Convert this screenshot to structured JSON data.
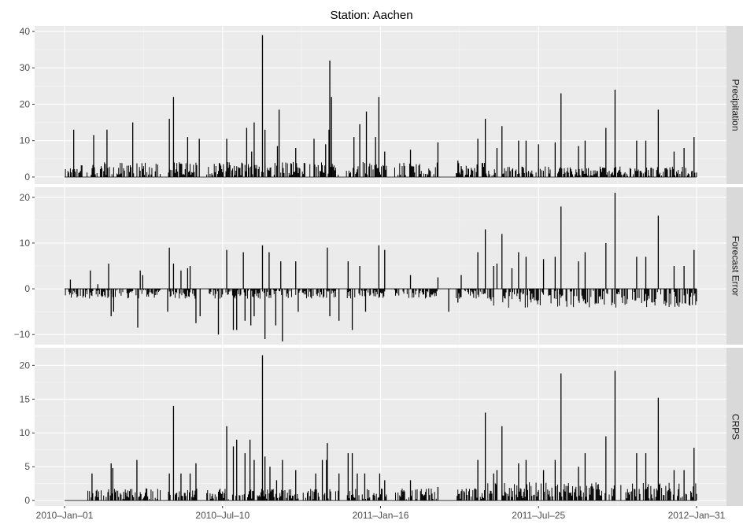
{
  "chart_data": {
    "type": "bar",
    "title": "Station:  Aachen",
    "x_ticks": [
      {
        "value": 0,
        "label": "2010–Jan–01"
      },
      {
        "value": 190,
        "label": "2010–Jul–10"
      },
      {
        "value": 380,
        "label": "2011–Jan–16"
      },
      {
        "value": 570,
        "label": "2011–Jul–25"
      },
      {
        "value": 760,
        "label": "2012–Jan–31"
      }
    ],
    "xlim": [
      -36,
      796
    ],
    "grid": true,
    "panels": [
      {
        "name": "Precipitation",
        "ylim": [
          -1.95,
          41.5
        ],
        "y_ticks": [
          0,
          10,
          20,
          30,
          40
        ],
        "y_tick_labels": [
          "0",
          "10",
          "20",
          "30",
          "40"
        ],
        "spikes": [
          [
            11,
            13
          ],
          [
            35,
            11.5
          ],
          [
            51,
            13
          ],
          [
            82,
            15
          ],
          [
            126,
            16
          ],
          [
            131,
            22
          ],
          [
            148,
            11
          ],
          [
            162,
            10.5
          ],
          [
            195,
            10.5
          ],
          [
            219,
            13.5
          ],
          [
            225,
            7
          ],
          [
            228,
            15
          ],
          [
            238,
            39
          ],
          [
            241,
            13
          ],
          [
            256,
            8.5
          ],
          [
            258,
            18.5
          ],
          [
            278,
            8
          ],
          [
            300,
            10.5
          ],
          [
            314,
            9
          ],
          [
            318,
            13
          ],
          [
            319,
            32
          ],
          [
            321,
            22
          ],
          [
            348,
            11
          ],
          [
            355,
            14.5
          ],
          [
            363,
            18
          ],
          [
            374,
            11
          ],
          [
            378,
            22
          ],
          [
            385,
            7
          ],
          [
            416,
            7.5
          ],
          [
            449,
            9.5
          ],
          [
            473,
            4.5
          ],
          [
            477,
            3
          ],
          [
            497,
            10.5
          ],
          [
            506,
            16
          ],
          [
            520,
            8
          ],
          [
            526,
            14
          ],
          [
            546,
            10
          ],
          [
            555,
            10
          ],
          [
            570,
            9
          ],
          [
            590,
            9.5
          ],
          [
            597,
            23
          ],
          [
            618,
            8.5
          ],
          [
            626,
            10
          ],
          [
            651,
            13.5
          ],
          [
            662,
            24
          ],
          [
            688,
            10
          ],
          [
            699,
            10
          ],
          [
            714,
            18.5
          ],
          [
            733,
            7
          ],
          [
            745,
            8
          ],
          [
            757,
            11
          ]
        ],
        "base_value": 2.3,
        "base_value_late": 1.6,
        "dry_periods": [
          [
            2,
            2.4
          ],
          [
            116,
            124
          ],
          [
            160,
            170
          ],
          [
            330,
            338
          ],
          [
            388,
            396
          ],
          [
            450,
            470
          ],
          [
            520,
            525
          ]
        ]
      },
      {
        "name": "Forecast Error",
        "ylim": [
          -12.2,
          22.2
        ],
        "y_ticks": [
          -10,
          0,
          10,
          20
        ],
        "y_tick_labels": [
          "−10",
          "0",
          "10",
          "20"
        ],
        "spikes": [
          [
            7,
            2
          ],
          [
            31,
            4
          ],
          [
            40,
            1
          ],
          [
            53,
            5.5
          ],
          [
            56,
            -6
          ],
          [
            59,
            -5
          ],
          [
            88,
            -8.5
          ],
          [
            91,
            4
          ],
          [
            94,
            3
          ],
          [
            124,
            -5
          ],
          [
            126,
            9
          ],
          [
            131,
            5.5
          ],
          [
            140,
            4
          ],
          [
            148,
            4.5
          ],
          [
            151,
            5
          ],
          [
            158,
            -7.5
          ],
          [
            163,
            -6
          ],
          [
            185,
            -10
          ],
          [
            195,
            8.5
          ],
          [
            203,
            -9
          ],
          [
            207,
            -9
          ],
          [
            215,
            8
          ],
          [
            217,
            -7
          ],
          [
            224,
            -8
          ],
          [
            228,
            -6
          ],
          [
            238,
            9.5
          ],
          [
            241,
            -11
          ],
          [
            246,
            8
          ],
          [
            254,
            -8
          ],
          [
            262,
            -11.5
          ],
          [
            260,
            6
          ],
          [
            278,
            6
          ],
          [
            281,
            -5
          ],
          [
            316,
            9
          ],
          [
            319,
            -6
          ],
          [
            330,
            -7
          ],
          [
            341,
            6
          ],
          [
            346,
            -9
          ],
          [
            355,
            5
          ],
          [
            362,
            -5
          ],
          [
            378,
            9.5
          ],
          [
            385,
            8.5
          ],
          [
            416,
            3
          ],
          [
            449,
            2.5
          ],
          [
            462,
            -5
          ],
          [
            473,
            -3
          ],
          [
            477,
            3
          ],
          [
            497,
            8
          ],
          [
            506,
            13
          ],
          [
            516,
            5
          ],
          [
            520,
            5.5
          ],
          [
            526,
            12
          ],
          [
            538,
            4.5
          ],
          [
            546,
            8
          ],
          [
            555,
            7
          ],
          [
            576,
            6.5
          ],
          [
            590,
            7
          ],
          [
            597,
            18
          ],
          [
            618,
            6
          ],
          [
            626,
            8
          ],
          [
            651,
            10
          ],
          [
            662,
            21
          ],
          [
            688,
            7
          ],
          [
            699,
            7
          ],
          [
            714,
            16
          ],
          [
            733,
            5
          ],
          [
            745,
            5
          ],
          [
            757,
            8.5
          ]
        ],
        "base_value": -1.2,
        "base_value_late": -2.3,
        "dry_periods": [
          [
            2,
            2.4
          ],
          [
            116,
            124
          ],
          [
            160,
            170
          ],
          [
            330,
            338
          ],
          [
            388,
            396
          ],
          [
            450,
            470
          ],
          [
            520,
            525
          ]
        ]
      },
      {
        "name": "CRPS",
        "ylim": [
          -0.8,
          22.6
        ],
        "y_ticks": [
          0,
          5,
          10,
          15,
          20
        ],
        "y_tick_labels": [
          "0",
          "5",
          "10",
          "15",
          "20"
        ],
        "spikes": [
          [
            33,
            4
          ],
          [
            56,
            5.5
          ],
          [
            58,
            4.8
          ],
          [
            87,
            6
          ],
          [
            126,
            4
          ],
          [
            131,
            14
          ],
          [
            140,
            4
          ],
          [
            151,
            4
          ],
          [
            158,
            5.5
          ],
          [
            195,
            11
          ],
          [
            203,
            8
          ],
          [
            207,
            9
          ],
          [
            217,
            7
          ],
          [
            223,
            9
          ],
          [
            228,
            6
          ],
          [
            238,
            21.5
          ],
          [
            241,
            6.5
          ],
          [
            247,
            5
          ],
          [
            255,
            3
          ],
          [
            262,
            6
          ],
          [
            278,
            4.5
          ],
          [
            302,
            4
          ],
          [
            310,
            6
          ],
          [
            315,
            6
          ],
          [
            316,
            8.5
          ],
          [
            330,
            4
          ],
          [
            341,
            7
          ],
          [
            346,
            7
          ],
          [
            352,
            4
          ],
          [
            361,
            4
          ],
          [
            379,
            4
          ],
          [
            385,
            3
          ],
          [
            416,
            3
          ],
          [
            449,
            2
          ],
          [
            497,
            6
          ],
          [
            506,
            13
          ],
          [
            516,
            4
          ],
          [
            520,
            4.5
          ],
          [
            526,
            11
          ],
          [
            546,
            5.5
          ],
          [
            555,
            6
          ],
          [
            576,
            4.5
          ],
          [
            590,
            6
          ],
          [
            597,
            18.8
          ],
          [
            618,
            5
          ],
          [
            626,
            7
          ],
          [
            651,
            9.5
          ],
          [
            662,
            19.2
          ],
          [
            688,
            7
          ],
          [
            699,
            7
          ],
          [
            714,
            15.2
          ],
          [
            733,
            4.5
          ],
          [
            745,
            4.5
          ],
          [
            757,
            7.8
          ]
        ],
        "base_value": 1.0,
        "base_value_late": 1.5,
        "dry_periods": [
          [
            2,
            27
          ],
          [
            116,
            124
          ],
          [
            160,
            170
          ],
          [
            330,
            338
          ],
          [
            388,
            396
          ],
          [
            450,
            470
          ],
          [
            520,
            525
          ]
        ]
      }
    ]
  }
}
